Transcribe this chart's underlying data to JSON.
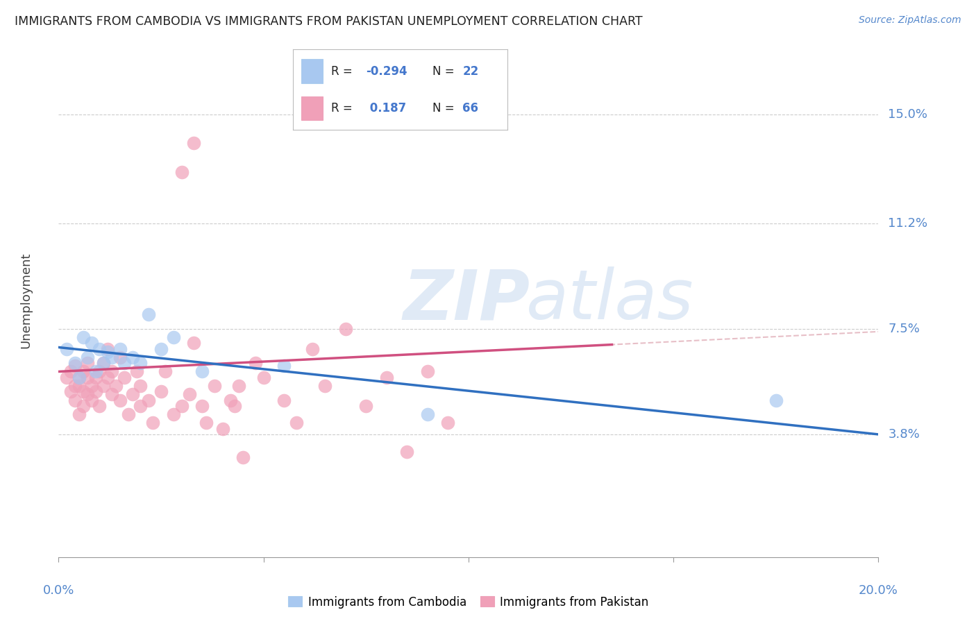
{
  "title": "IMMIGRANTS FROM CAMBODIA VS IMMIGRANTS FROM PAKISTAN UNEMPLOYMENT CORRELATION CHART",
  "source": "Source: ZipAtlas.com",
  "ylabel": "Unemployment",
  "yticks": [
    0.038,
    0.075,
    0.112,
    0.15
  ],
  "ytick_labels": [
    "3.8%",
    "7.5%",
    "11.2%",
    "15.0%"
  ],
  "xlim": [
    0.0,
    0.2
  ],
  "ylim": [
    -0.005,
    0.175
  ],
  "legend_r_cambodia": "-0.294",
  "legend_n_cambodia": "22",
  "legend_r_pakistan": " 0.187",
  "legend_n_pakistan": "66",
  "color_cambodia": "#a8c8f0",
  "color_pakistan": "#f0a0b8",
  "line_color_cambodia": "#3070c0",
  "line_color_pakistan": "#d05080",
  "line_color_pakistan_dash": "#d08090",
  "watermark_zip": "ZIP",
  "watermark_atlas": "atlas",
  "cambodia_points": [
    [
      0.002,
      0.068
    ],
    [
      0.004,
      0.063
    ],
    [
      0.005,
      0.058
    ],
    [
      0.006,
      0.072
    ],
    [
      0.007,
      0.065
    ],
    [
      0.008,
      0.07
    ],
    [
      0.009,
      0.06
    ],
    [
      0.01,
      0.068
    ],
    [
      0.011,
      0.063
    ],
    [
      0.012,
      0.067
    ],
    [
      0.013,
      0.065
    ],
    [
      0.015,
      0.068
    ],
    [
      0.016,
      0.063
    ],
    [
      0.018,
      0.065
    ],
    [
      0.02,
      0.063
    ],
    [
      0.022,
      0.08
    ],
    [
      0.025,
      0.068
    ],
    [
      0.028,
      0.072
    ],
    [
      0.035,
      0.06
    ],
    [
      0.055,
      0.062
    ],
    [
      0.09,
      0.045
    ],
    [
      0.175,
      0.05
    ]
  ],
  "pakistan_points": [
    [
      0.002,
      0.058
    ],
    [
      0.003,
      0.053
    ],
    [
      0.003,
      0.06
    ],
    [
      0.004,
      0.055
    ],
    [
      0.004,
      0.062
    ],
    [
      0.004,
      0.05
    ],
    [
      0.005,
      0.058
    ],
    [
      0.005,
      0.055
    ],
    [
      0.005,
      0.045
    ],
    [
      0.006,
      0.06
    ],
    [
      0.006,
      0.053
    ],
    [
      0.006,
      0.048
    ],
    [
      0.007,
      0.058
    ],
    [
      0.007,
      0.052
    ],
    [
      0.007,
      0.063
    ],
    [
      0.008,
      0.055
    ],
    [
      0.008,
      0.05
    ],
    [
      0.009,
      0.058
    ],
    [
      0.009,
      0.053
    ],
    [
      0.01,
      0.06
    ],
    [
      0.01,
      0.048
    ],
    [
      0.011,
      0.063
    ],
    [
      0.011,
      0.055
    ],
    [
      0.012,
      0.058
    ],
    [
      0.012,
      0.068
    ],
    [
      0.013,
      0.052
    ],
    [
      0.013,
      0.06
    ],
    [
      0.014,
      0.055
    ],
    [
      0.015,
      0.05
    ],
    [
      0.015,
      0.065
    ],
    [
      0.016,
      0.058
    ],
    [
      0.017,
      0.045
    ],
    [
      0.018,
      0.052
    ],
    [
      0.019,
      0.06
    ],
    [
      0.02,
      0.048
    ],
    [
      0.02,
      0.055
    ],
    [
      0.022,
      0.05
    ],
    [
      0.023,
      0.042
    ],
    [
      0.025,
      0.053
    ],
    [
      0.026,
      0.06
    ],
    [
      0.028,
      0.045
    ],
    [
      0.03,
      0.048
    ],
    [
      0.032,
      0.052
    ],
    [
      0.033,
      0.07
    ],
    [
      0.035,
      0.048
    ],
    [
      0.036,
      0.042
    ],
    [
      0.038,
      0.055
    ],
    [
      0.04,
      0.04
    ],
    [
      0.042,
      0.05
    ],
    [
      0.043,
      0.048
    ],
    [
      0.044,
      0.055
    ],
    [
      0.045,
      0.03
    ],
    [
      0.048,
      0.063
    ],
    [
      0.05,
      0.058
    ],
    [
      0.055,
      0.05
    ],
    [
      0.058,
      0.042
    ],
    [
      0.062,
      0.068
    ],
    [
      0.065,
      0.055
    ],
    [
      0.07,
      0.075
    ],
    [
      0.075,
      0.048
    ],
    [
      0.08,
      0.058
    ],
    [
      0.085,
      0.032
    ],
    [
      0.09,
      0.06
    ],
    [
      0.095,
      0.042
    ],
    [
      0.03,
      0.13
    ],
    [
      0.033,
      0.14
    ]
  ]
}
